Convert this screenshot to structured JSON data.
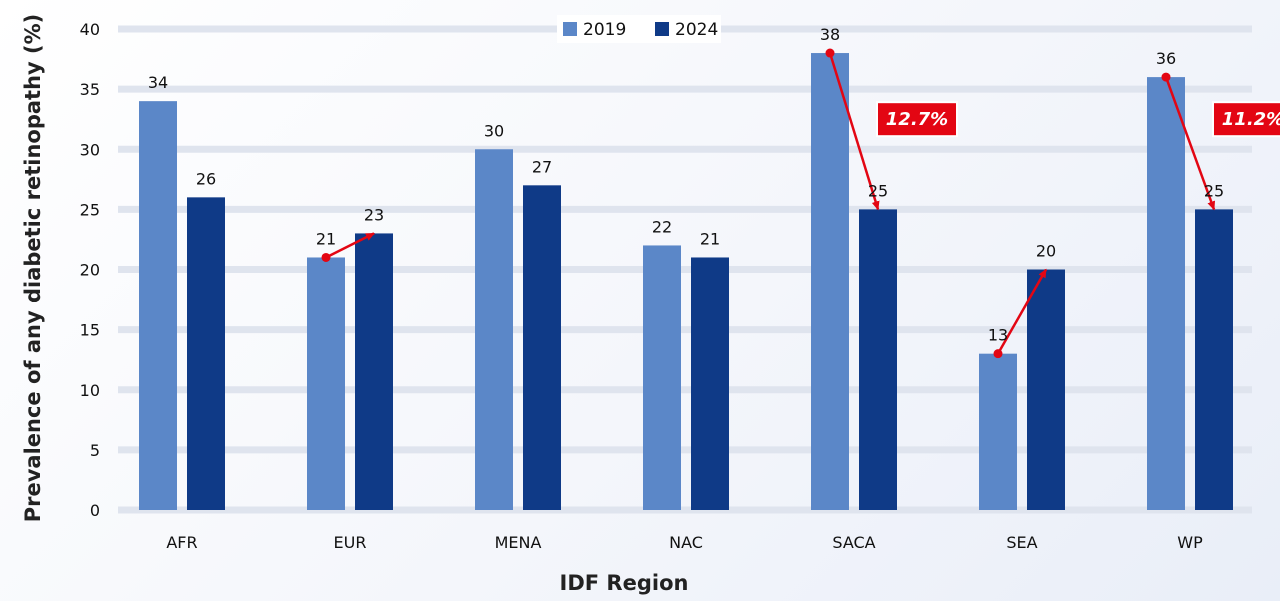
{
  "chart_data": {
    "type": "bar",
    "title": "",
    "xlabel": "IDF Region",
    "ylabel": "Prevalence of any diabetic retinopathy (%)",
    "ylim": [
      0,
      40
    ],
    "yticks": [
      0,
      5,
      10,
      15,
      20,
      25,
      30,
      35,
      40
    ],
    "grid": true,
    "legend_position": "top-center",
    "categories": [
      "AFR",
      "EUR",
      "MENA",
      "NAC",
      "SACA",
      "SEA",
      "WP"
    ],
    "series": [
      {
        "name": "2019",
        "color": "#5b87c8",
        "values": [
          34,
          21,
          30,
          22,
          38,
          13,
          36
        ]
      },
      {
        "name": "2024",
        "color": "#0f3a87",
        "values": [
          26,
          23,
          27,
          21,
          25,
          20,
          25
        ]
      }
    ],
    "annotations": [
      {
        "category": "EUR",
        "type": "arrow"
      },
      {
        "category": "SACA",
        "type": "arrow",
        "label": "12.7%"
      },
      {
        "category": "SEA",
        "type": "arrow"
      },
      {
        "category": "WP",
        "type": "arrow",
        "label": "11.2%"
      }
    ],
    "annotation_color": "#e30613"
  }
}
